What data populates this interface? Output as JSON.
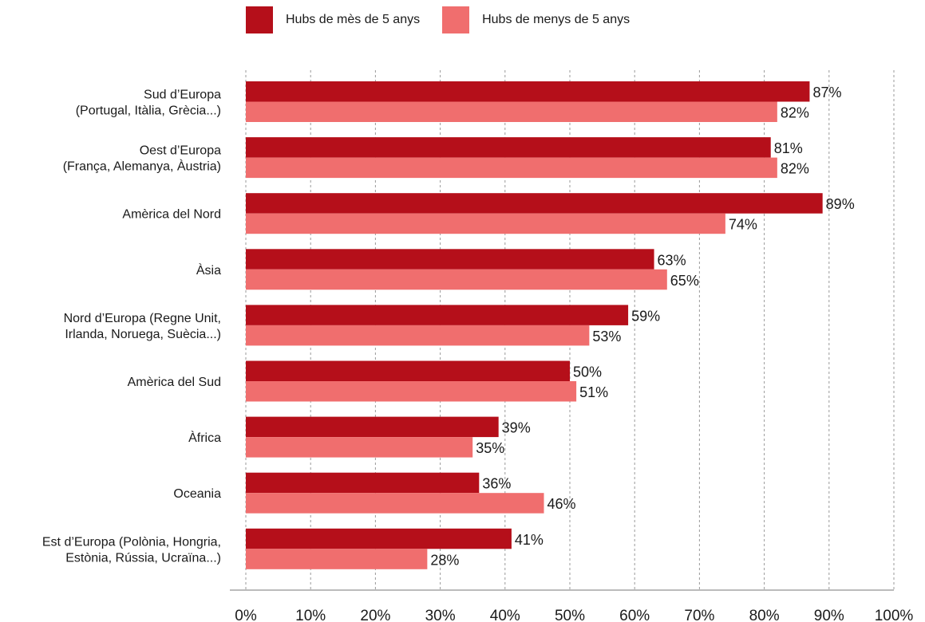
{
  "legend": [
    {
      "name": "Hubs de mès de 5 anys",
      "color": "#b50f1a"
    },
    {
      "name": "Hubs de menys de 5 anys",
      "color": "#f06e6e"
    }
  ],
  "chart_data": {
    "type": "bar",
    "orientation": "horizontal",
    "categories": [
      [
        "Sud d’Europa",
        "(Portugal, Itàlia, Grècia...)"
      ],
      [
        "Oest d’Europa",
        "(França, Alemanya, Àustria)"
      ],
      [
        "Amèrica del Nord"
      ],
      [
        "Àsia"
      ],
      [
        "Nord d’Europa (Regne Unit,",
        "Irlanda, Noruega, Suècia...)"
      ],
      [
        "Amèrica del Sud"
      ],
      [
        "Àfrica"
      ],
      [
        "Oceania"
      ],
      [
        "Est d’Europa (Polònia, Hongria,",
        "Estònia, Rússia, Ucraïna...)"
      ]
    ],
    "series": [
      {
        "name": "Hubs de mès de 5 anys",
        "color": "#b50f1a",
        "values": [
          87,
          81,
          89,
          63,
          59,
          50,
          39,
          36,
          41
        ],
        "labels": [
          "87%",
          "81%",
          "89%",
          "63%",
          "59%",
          "50%",
          "39%",
          "36%",
          "41%"
        ]
      },
      {
        "name": "Hubs de menys de 5 anys",
        "color": "#f06e6e",
        "values": [
          82,
          82,
          74,
          65,
          53,
          51,
          35,
          46,
          28
        ],
        "labels": [
          "82%",
          "82%",
          "74%",
          "65%",
          "53%",
          "51%",
          "35%",
          "46%",
          "28%"
        ]
      }
    ],
    "xlim": [
      0,
      100
    ],
    "xticks": [
      0,
      10,
      20,
      30,
      40,
      50,
      60,
      70,
      80,
      90,
      100
    ],
    "xtick_labels": [
      "0%",
      "10%",
      "20%",
      "30%",
      "40%",
      "50%",
      "60%",
      "70%",
      "80%",
      "90%",
      "100%"
    ],
    "grid": "vertical dashed",
    "legend_position": "top"
  }
}
